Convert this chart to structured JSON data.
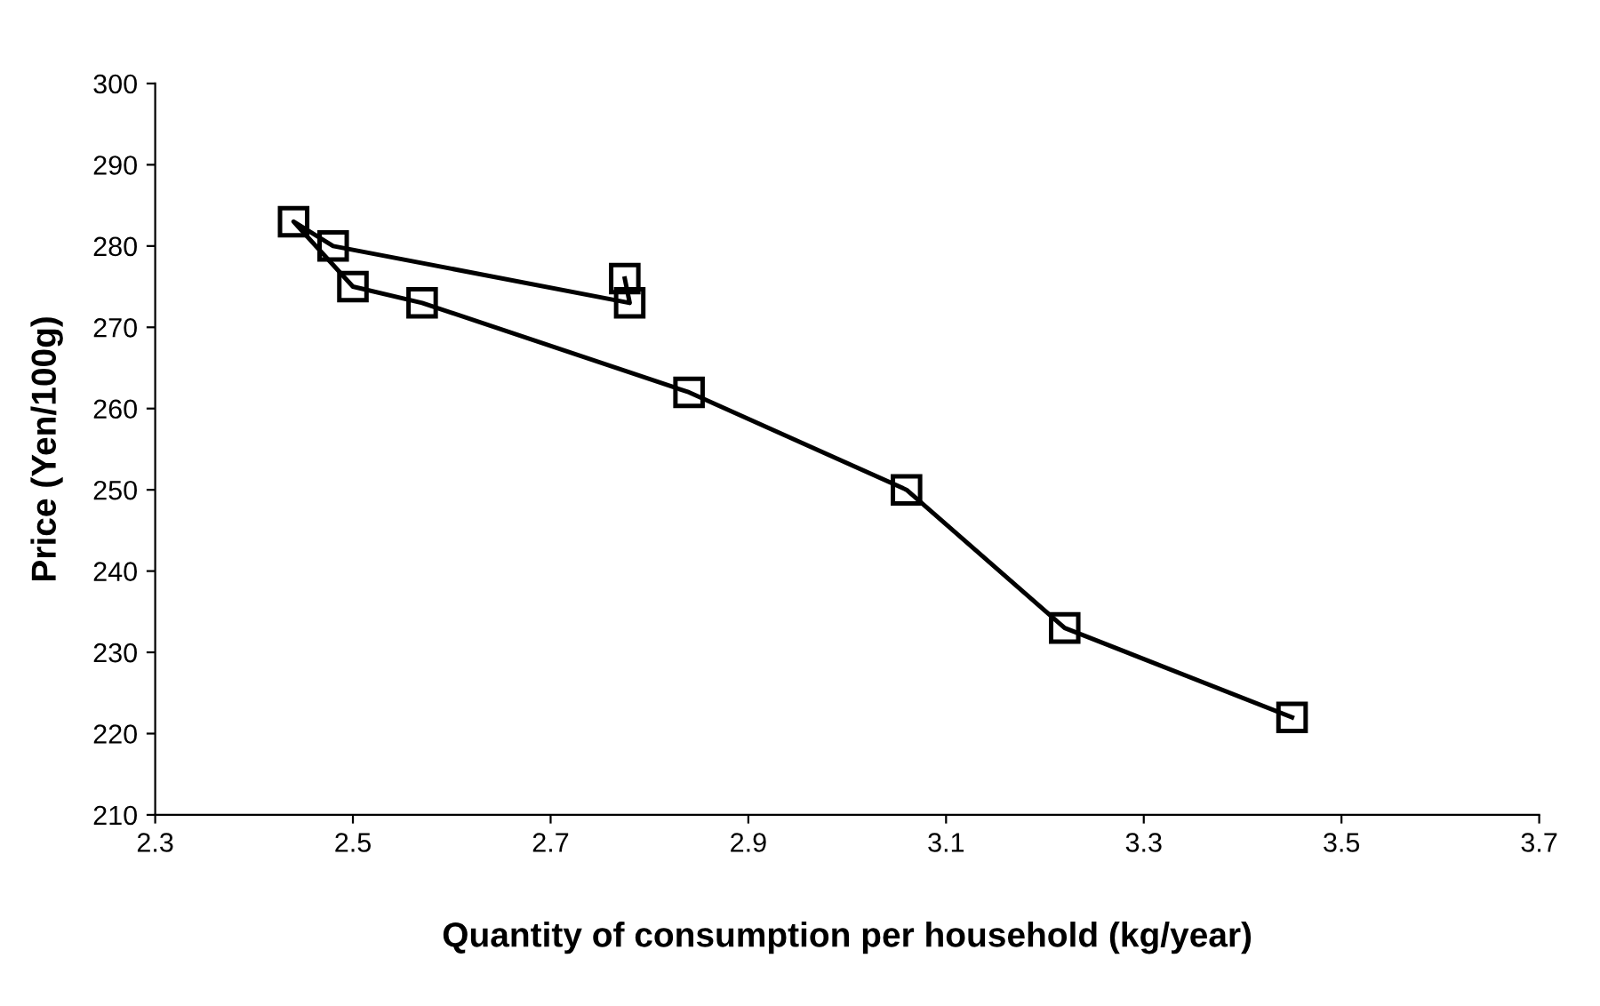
{
  "chart_data": {
    "type": "line",
    "xlabel": "Quantity of consumption per household (kg/year)",
    "ylabel": "Price (Yen/100g)",
    "x": [
      3.45,
      3.22,
      3.06,
      2.84,
      2.57,
      2.5,
      2.44,
      2.48,
      2.78,
      2.775
    ],
    "series": [
      {
        "color": "#000000",
        "values": [
          222,
          233,
          250,
          262,
          273,
          275,
          283,
          280,
          273,
          276
        ]
      }
    ],
    "xlim": [
      2.3,
      3.7
    ],
    "xticks": [
      2.3,
      2.5,
      2.7,
      2.9,
      3.1,
      3.3,
      3.5,
      3.7
    ],
    "ylim": [
      210,
      300
    ],
    "yticks": [
      210,
      220,
      230,
      240,
      250,
      260,
      270,
      280,
      290,
      300
    ],
    "marker": "square",
    "line_style": "solid",
    "grid": false,
    "legend": false
  }
}
